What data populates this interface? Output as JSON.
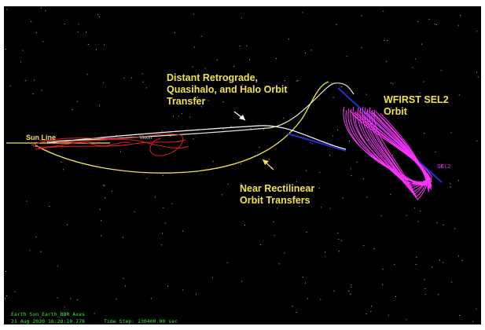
{
  "annotations": [
    {
      "lines": [
        "Distant Retrograde,",
        "Quasihalo, and Halo Orbit",
        "Transfer"
      ]
    },
    {
      "lines": [
        "WFIRST SEL2",
        "Orbit"
      ]
    },
    {
      "lines": [
        "Near Rectilinear",
        "Orbit Transfers"
      ]
    }
  ],
  "labels": {
    "sun_line": "Sun Line",
    "moon": "Moon",
    "sel2": "SEL2"
  },
  "status": [
    "Earth Sun_Earth_BBR Axes",
    "21 Aug 2030 16:28:10.278",
    "Time Step: 230400.00 sec"
  ]
}
